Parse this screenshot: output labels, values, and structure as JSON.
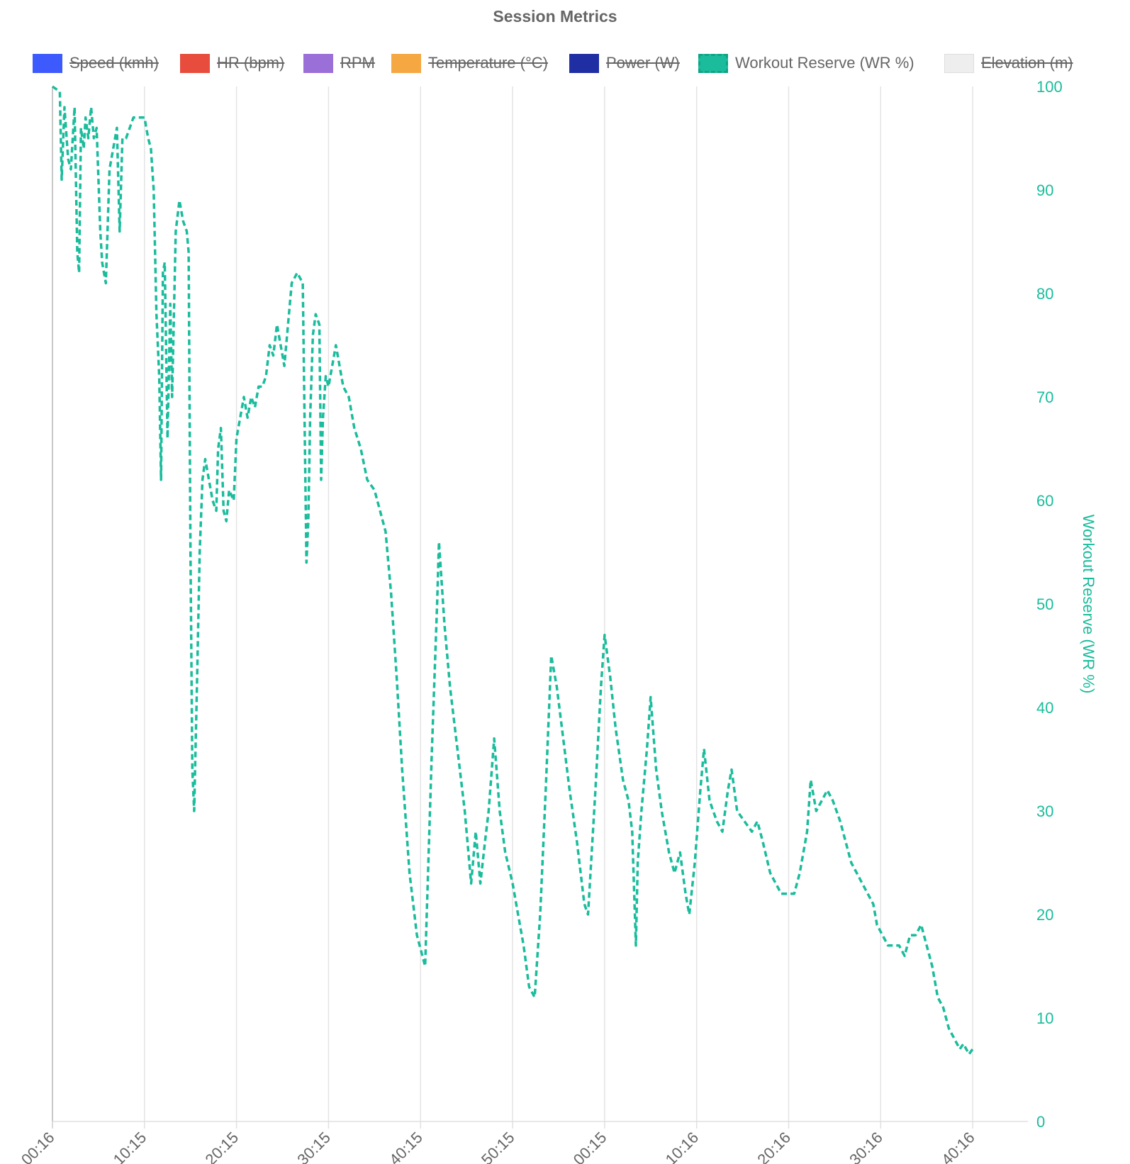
{
  "chart_data": {
    "type": "line",
    "title": "Session Metrics",
    "legend": {
      "placement": "top",
      "items": [
        {
          "label": "Speed (kmh)",
          "color": "#3d5afe",
          "hidden": true
        },
        {
          "label": "HR (bpm)",
          "color": "#e74c3c",
          "hidden": true
        },
        {
          "label": "RPM",
          "color": "#9b6fd8",
          "hidden": true
        },
        {
          "label": "Temperature (°C)",
          "color": "#f5a742",
          "hidden": true
        },
        {
          "label": "Power (W)",
          "color": "#1f2fa3",
          "hidden": true
        },
        {
          "label": "Workout Reserve (WR %)",
          "color": "#1abc9c",
          "hidden": false,
          "dashed": true
        },
        {
          "label": "Elevation (m)",
          "color": "#eeeeee",
          "hidden": true
        }
      ]
    },
    "y_axis": {
      "position": "right",
      "label": "Workout Reserve (WR %)",
      "range": [
        0,
        100
      ],
      "ticks": [
        0,
        10,
        20,
        30,
        40,
        50,
        60,
        70,
        80,
        90,
        100
      ]
    },
    "x_axis": {
      "range": [
        0,
        10.6
      ],
      "ticks": [
        {
          "x": 0,
          "label": "00:16"
        },
        {
          "x": 1,
          "label": "10:15"
        },
        {
          "x": 2,
          "label": "20:15"
        },
        {
          "x": 3,
          "label": "30:15"
        },
        {
          "x": 4,
          "label": "40:15"
        },
        {
          "x": 5,
          "label": "50:15"
        },
        {
          "x": 6,
          "label": "00:15"
        },
        {
          "x": 7,
          "label": "10:16"
        },
        {
          "x": 8,
          "label": "20:16"
        },
        {
          "x": 9,
          "label": "30:16"
        },
        {
          "x": 10,
          "label": "40:16"
        }
      ]
    },
    "grid": true,
    "series": [
      {
        "name": "Workout Reserve (WR %)",
        "color": "#1abc9c",
        "dashed": true,
        "points": [
          [
            0.0,
            100
          ],
          [
            0.08,
            99.5
          ],
          [
            0.1,
            91
          ],
          [
            0.13,
            98
          ],
          [
            0.17,
            93
          ],
          [
            0.2,
            92
          ],
          [
            0.24,
            98
          ],
          [
            0.27,
            84
          ],
          [
            0.29,
            82
          ],
          [
            0.31,
            96
          ],
          [
            0.34,
            94
          ],
          [
            0.36,
            97
          ],
          [
            0.39,
            95
          ],
          [
            0.42,
            98
          ],
          [
            0.45,
            95
          ],
          [
            0.48,
            96
          ],
          [
            0.52,
            86
          ],
          [
            0.54,
            83
          ],
          [
            0.58,
            81
          ],
          [
            0.62,
            92
          ],
          [
            0.66,
            94
          ],
          [
            0.7,
            96
          ],
          [
            0.73,
            86
          ],
          [
            0.76,
            95
          ],
          [
            0.8,
            95
          ],
          [
            0.88,
            97
          ],
          [
            1.0,
            97
          ],
          [
            1.04,
            95
          ],
          [
            1.07,
            94
          ],
          [
            1.1,
            90
          ],
          [
            1.13,
            78
          ],
          [
            1.16,
            72
          ],
          [
            1.18,
            62
          ],
          [
            1.2,
            82
          ],
          [
            1.22,
            83
          ],
          [
            1.25,
            66
          ],
          [
            1.28,
            79
          ],
          [
            1.3,
            70
          ],
          [
            1.34,
            86
          ],
          [
            1.38,
            89
          ],
          [
            1.42,
            87
          ],
          [
            1.46,
            86
          ],
          [
            1.48,
            84
          ],
          [
            1.5,
            55
          ],
          [
            1.52,
            34
          ],
          [
            1.54,
            30
          ],
          [
            1.57,
            42
          ],
          [
            1.6,
            55
          ],
          [
            1.63,
            62
          ],
          [
            1.66,
            64
          ],
          [
            1.7,
            62
          ],
          [
            1.74,
            60
          ],
          [
            1.78,
            59
          ],
          [
            1.8,
            65
          ],
          [
            1.83,
            67
          ],
          [
            1.86,
            59
          ],
          [
            1.89,
            58
          ],
          [
            1.92,
            61
          ],
          [
            1.97,
            60
          ],
          [
            2.0,
            66
          ],
          [
            2.04,
            68
          ],
          [
            2.08,
            70
          ],
          [
            2.12,
            68
          ],
          [
            2.16,
            70
          ],
          [
            2.2,
            69
          ],
          [
            2.24,
            71
          ],
          [
            2.28,
            71
          ],
          [
            2.32,
            72
          ],
          [
            2.36,
            75
          ],
          [
            2.4,
            74
          ],
          [
            2.44,
            77
          ],
          [
            2.48,
            75
          ],
          [
            2.52,
            73
          ],
          [
            2.55,
            76
          ],
          [
            2.6,
            81
          ],
          [
            2.66,
            82
          ],
          [
            2.72,
            81
          ],
          [
            2.76,
            54
          ],
          [
            2.78,
            58
          ],
          [
            2.8,
            68
          ],
          [
            2.83,
            76
          ],
          [
            2.86,
            78
          ],
          [
            2.9,
            77
          ],
          [
            2.92,
            62
          ],
          [
            2.94,
            68
          ],
          [
            2.97,
            72
          ],
          [
            3.0,
            71
          ],
          [
            3.04,
            73
          ],
          [
            3.08,
            75
          ],
          [
            3.12,
            73
          ],
          [
            3.16,
            71
          ],
          [
            3.22,
            70
          ],
          [
            3.28,
            67
          ],
          [
            3.35,
            65
          ],
          [
            3.42,
            62
          ],
          [
            3.5,
            61
          ],
          [
            3.56,
            59
          ],
          [
            3.62,
            57
          ],
          [
            3.68,
            51
          ],
          [
            3.74,
            43
          ],
          [
            3.8,
            34
          ],
          [
            3.88,
            24
          ],
          [
            3.96,
            18
          ],
          [
            4.05,
            15
          ],
          [
            4.12,
            35
          ],
          [
            4.18,
            50
          ],
          [
            4.2,
            56
          ],
          [
            4.26,
            48
          ],
          [
            4.32,
            42
          ],
          [
            4.4,
            36
          ],
          [
            4.48,
            30
          ],
          [
            4.55,
            23
          ],
          [
            4.6,
            28
          ],
          [
            4.65,
            23
          ],
          [
            4.7,
            27
          ],
          [
            4.74,
            30
          ],
          [
            4.8,
            37
          ],
          [
            4.86,
            30
          ],
          [
            4.92,
            26
          ],
          [
            5.0,
            23
          ],
          [
            5.06,
            20
          ],
          [
            5.12,
            17
          ],
          [
            5.18,
            13
          ],
          [
            5.24,
            12
          ],
          [
            5.3,
            20
          ],
          [
            5.36,
            32
          ],
          [
            5.42,
            45
          ],
          [
            5.48,
            42
          ],
          [
            5.55,
            37
          ],
          [
            5.62,
            32
          ],
          [
            5.7,
            27
          ],
          [
            5.78,
            21
          ],
          [
            5.82,
            20
          ],
          [
            5.9,
            32
          ],
          [
            5.96,
            42
          ],
          [
            6.0,
            47
          ],
          [
            6.06,
            43
          ],
          [
            6.12,
            38
          ],
          [
            6.2,
            33
          ],
          [
            6.26,
            31
          ],
          [
            6.3,
            28
          ],
          [
            6.34,
            17
          ],
          [
            6.36,
            25
          ],
          [
            6.4,
            30
          ],
          [
            6.46,
            36
          ],
          [
            6.5,
            41
          ],
          [
            6.56,
            34
          ],
          [
            6.62,
            30
          ],
          [
            6.7,
            26
          ],
          [
            6.76,
            24
          ],
          [
            6.82,
            26
          ],
          [
            6.88,
            22
          ],
          [
            6.92,
            20
          ],
          [
            6.98,
            25
          ],
          [
            7.04,
            32
          ],
          [
            7.08,
            36
          ],
          [
            7.14,
            31
          ],
          [
            7.22,
            29
          ],
          [
            7.28,
            28
          ],
          [
            7.34,
            32
          ],
          [
            7.38,
            34
          ],
          [
            7.44,
            30
          ],
          [
            7.52,
            29
          ],
          [
            7.6,
            28
          ],
          [
            7.66,
            29
          ],
          [
            7.72,
            27
          ],
          [
            7.8,
            24
          ],
          [
            7.86,
            23
          ],
          [
            7.92,
            22
          ],
          [
            8.0,
            22
          ],
          [
            8.06,
            22
          ],
          [
            8.12,
            24
          ],
          [
            8.2,
            28
          ],
          [
            8.24,
            33
          ],
          [
            8.3,
            30
          ],
          [
            8.36,
            31
          ],
          [
            8.42,
            32
          ],
          [
            8.48,
            31
          ],
          [
            8.56,
            29
          ],
          [
            8.62,
            27
          ],
          [
            8.68,
            25
          ],
          [
            8.74,
            24
          ],
          [
            8.8,
            23
          ],
          [
            8.86,
            22
          ],
          [
            8.92,
            21
          ],
          [
            8.96,
            19
          ],
          [
            9.02,
            18
          ],
          [
            9.08,
            17
          ],
          [
            9.14,
            17
          ],
          [
            9.2,
            17
          ],
          [
            9.26,
            16
          ],
          [
            9.32,
            18
          ],
          [
            9.38,
            18
          ],
          [
            9.44,
            19
          ],
          [
            9.5,
            17
          ],
          [
            9.56,
            15
          ],
          [
            9.62,
            12
          ],
          [
            9.68,
            11
          ],
          [
            9.74,
            9
          ],
          [
            9.8,
            8
          ],
          [
            9.86,
            7
          ],
          [
            9.9,
            7.5
          ],
          [
            9.96,
            6.5
          ],
          [
            10.0,
            7
          ]
        ]
      }
    ]
  }
}
